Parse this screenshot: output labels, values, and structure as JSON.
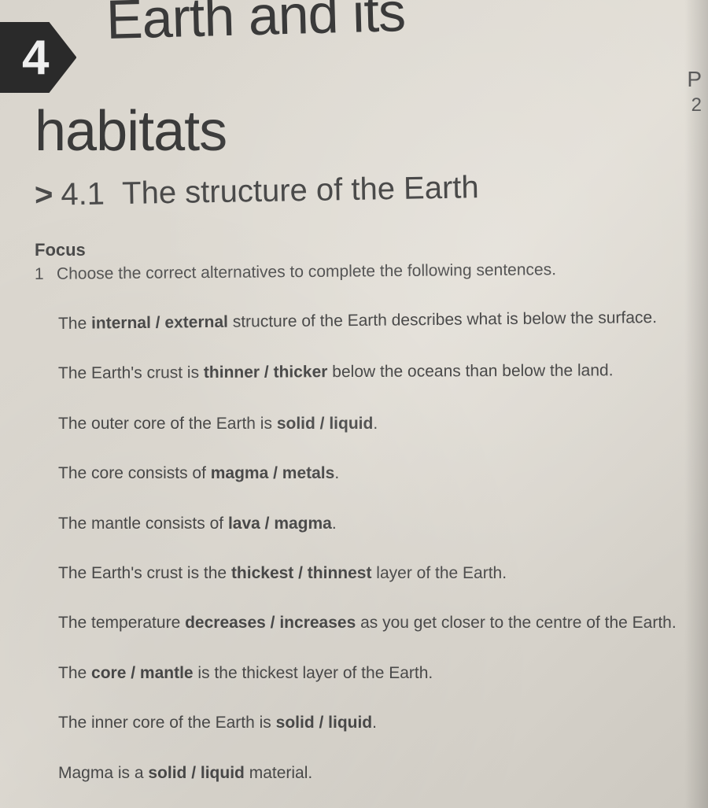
{
  "chapter": {
    "number": "4",
    "title_line1": "Earth and its",
    "title_line2": "habitats"
  },
  "section": {
    "chevron": ">",
    "number": "4.1",
    "title": "The structure of the Earth"
  },
  "focus_label": "Focus",
  "question": {
    "number": "1",
    "instruction": "Choose the correct alternatives to complete the following sentences."
  },
  "sentences": [
    {
      "pre": "The ",
      "bold": "internal / external",
      "post": " structure of the Earth describes what is below the surface."
    },
    {
      "pre": "The Earth's crust is ",
      "bold": "thinner / thicker",
      "post": " below the oceans than below the land."
    },
    {
      "pre": "The outer core of the Earth is ",
      "bold": "solid / liquid",
      "post": "."
    },
    {
      "pre": "The core consists of ",
      "bold": "magma / metals",
      "post": "."
    },
    {
      "pre": "The mantle consists of ",
      "bold": "lava / magma",
      "post": "."
    },
    {
      "pre": "The Earth's crust is the ",
      "bold": "thickest / thinnest",
      "post": " layer of the Earth."
    },
    {
      "pre": "The temperature ",
      "bold": "decreases / increases",
      "post": " as you get closer to the centre of the Earth."
    },
    {
      "pre": "The ",
      "bold": "core / mantle",
      "post": " is the thickest layer of the Earth."
    },
    {
      "pre": "The inner core of the Earth is ",
      "bold": "solid / liquid",
      "post": "."
    },
    {
      "pre": "Magma is a ",
      "bold": "solid / liquid",
      "post": " material."
    }
  ],
  "margin": {
    "p": "P",
    "two": "2"
  },
  "colors": {
    "page_bg": "#dcd8d0",
    "badge_bg": "#2a2a2a",
    "badge_fg": "#efefef",
    "text": "#4a4a4a"
  }
}
